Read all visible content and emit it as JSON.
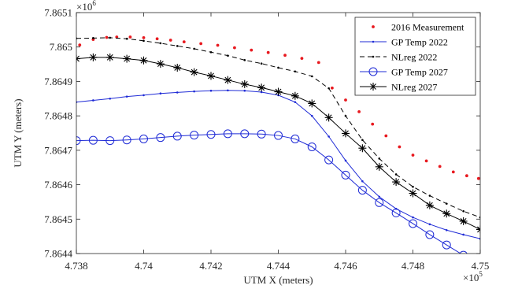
{
  "chart_data": {
    "type": "line",
    "xlabel": "UTM X (meters)",
    "ylabel": "UTM Y (meters)",
    "x_multiplier_base": "×10",
    "x_multiplier_exp": "5",
    "y_multiplier_base": "×10",
    "y_multiplier_exp": "6",
    "xlim": [
      473800,
      475000
    ],
    "ylim": [
      7864400,
      7865100
    ],
    "x_ticks": [
      473800,
      474000,
      474200,
      474400,
      474600,
      474800,
      475000
    ],
    "x_tick_labels": [
      "4.738",
      "4.74",
      "4.742",
      "4.744",
      "4.746",
      "4.748",
      "4.75"
    ],
    "y_ticks": [
      7864400,
      7864500,
      7864600,
      7864700,
      7864800,
      7864900,
      7865000,
      7865100
    ],
    "y_tick_labels": [
      "7.8644",
      "7.8645",
      "7.8646",
      "7.8647",
      "7.8648",
      "7.8649",
      "7.865",
      "7.8651"
    ],
    "grid": false,
    "legend_position": "top-right",
    "series": [
      {
        "name": "2016 Measurement",
        "style": "dots",
        "color": "#e8191f",
        "x": [
          473810,
          473850,
          473890,
          473920,
          473960,
          474000,
          474040,
          474080,
          474120,
          474170,
          474220,
          474270,
          474320,
          474370,
          474420,
          474470,
          474520,
          474560,
          474600,
          474640,
          474680,
          474720,
          474760,
          474800,
          474840,
          474880,
          474920,
          474960,
          474995
        ],
        "y": [
          7865006,
          7865022,
          7865028,
          7865029,
          7865029,
          7865027,
          7865024,
          7865020,
          7865015,
          7865010,
          7865005,
          7864998,
          7864991,
          7864984,
          7864976,
          7864967,
          7864955,
          7864881,
          7864846,
          7864812,
          7864776,
          7864742,
          7864710,
          7864686,
          7864669,
          7864653,
          7864637,
          7864626,
          7864618
        ]
      },
      {
        "name": "GP Temp 2022",
        "style": "solid-small-dots",
        "color": "#1f2bd6",
        "x": [
          473800,
          473850,
          473900,
          473950,
          474000,
          474050,
          474100,
          474150,
          474200,
          474250,
          474300,
          474350,
          474400,
          474450,
          474500,
          474550,
          474600,
          474650,
          474700,
          474750,
          474800,
          474850,
          474900,
          474950,
          475000
        ],
        "y": [
          7864840,
          7864845,
          7864850,
          7864856,
          7864860,
          7864865,
          7864868,
          7864871,
          7864873,
          7864874,
          7864873,
          7864869,
          7864860,
          7864840,
          7864800,
          7864740,
          7864670,
          7864610,
          7864565,
          7864530,
          7864505,
          7864485,
          7864468,
          7864455,
          7864443
        ]
      },
      {
        "name": "NLreg 2022",
        "style": "dashed-small-dots",
        "color": "#000000",
        "x": [
          473800,
          473850,
          473900,
          473950,
          474000,
          474050,
          474100,
          474150,
          474200,
          474250,
          474300,
          474350,
          474400,
          474450,
          474500,
          474550,
          474600,
          474650,
          474700,
          474750,
          474800,
          474850,
          474900,
          474950,
          475000
        ],
        "y": [
          7865025,
          7865026,
          7865027,
          7865024,
          7865018,
          7865011,
          7865003,
          7864995,
          7864985,
          7864975,
          7864962,
          7864952,
          7864940,
          7864929,
          7864915,
          7864880,
          7864800,
          7864730,
          7864676,
          7864630,
          7864594,
          7864568,
          7864545,
          7864523,
          7864505
        ]
      },
      {
        "name": "GP Temp 2027",
        "style": "solid-circles",
        "color": "#1f2bd6",
        "x": [
          473800,
          473850,
          473900,
          473950,
          474000,
          474050,
          474100,
          474150,
          474200,
          474250,
          474300,
          474350,
          474400,
          474450,
          474500,
          474550,
          474600,
          474650,
          474700,
          474750,
          474800,
          474850,
          474900,
          474950,
          475000
        ],
        "y": [
          7864728,
          7864729,
          7864728,
          7864730,
          7864733,
          7864737,
          7864741,
          7864744,
          7864746,
          7864748,
          7864748,
          7864747,
          7864743,
          7864733,
          7864710,
          7864672,
          7864628,
          7864584,
          7864548,
          7864518,
          7864487,
          7864455,
          7864425,
          7864395,
          7864365
        ]
      },
      {
        "name": "NLreg 2027",
        "style": "solid-asterisks",
        "color": "#000000",
        "x": [
          473800,
          473850,
          473900,
          473950,
          474000,
          474050,
          474100,
          474150,
          474200,
          474250,
          474300,
          474350,
          474400,
          474450,
          474500,
          474550,
          474600,
          474650,
          474700,
          474750,
          474800,
          474850,
          474900,
          474950,
          475000
        ],
        "y": [
          7864966,
          7864970,
          7864970,
          7864966,
          7864961,
          7864951,
          7864940,
          7864927,
          7864916,
          7864904,
          7864892,
          7864882,
          7864870,
          7864858,
          7864836,
          7864795,
          7864749,
          7864706,
          7864652,
          7864608,
          7864575,
          7864540,
          7864516,
          7864494,
          7864470
        ]
      }
    ]
  }
}
